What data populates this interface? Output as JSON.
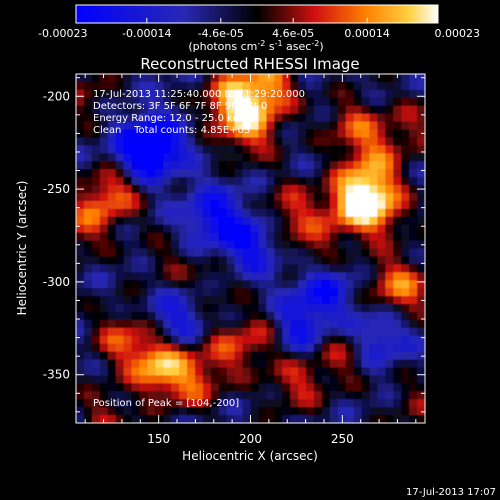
{
  "chart_data": {
    "type": "heatmap",
    "title": "Reconstructed RHESSI Image",
    "xlabel": "Heliocentric X (arcsec)",
    "ylabel": "Heliocentric Y (arcsec)",
    "xlim": [
      105,
      295
    ],
    "ylim": [
      -376,
      -188
    ],
    "x_ticks": [
      150,
      200,
      250
    ],
    "y_ticks": [
      -200,
      -250,
      -300,
      -350
    ],
    "colorbar": {
      "min": -0.00023,
      "max": 0.00023,
      "tick_values": [
        -0.00023,
        -0.00014,
        -4.6e-05,
        4.6e-05,
        0.00014,
        0.00023
      ],
      "tick_labels": [
        "-0.00023",
        "-0.00014",
        "-4.6e-05",
        "4.6e-05",
        "0.00014",
        "0.00023"
      ],
      "units": {
        "prefix": "(photons cm",
        "sup1": "-2",
        "mid1": " s",
        "sup2": "-1",
        "mid2": " asec",
        "sup3": "-2",
        "suffix": ")"
      }
    },
    "annotations": {
      "time_range": "17-Jul-2013 11:25:40.000 to 11:29:20.000",
      "detectors": "Detectors: 3F 5F 6F 7F 8F 9F, Att 0",
      "energy": "Energy Range: 12.0 - 25.0 keV",
      "clean": "Clean    Total counts: 4.85E+03",
      "peak": "Position of Peak = [104,-200]"
    },
    "features": [
      {
        "x": 125,
        "y": -252,
        "value": 0.00017
      },
      {
        "x": 108,
        "y": -270,
        "value": 0.00012
      },
      {
        "x": 190,
        "y": -203,
        "value": 0.00021
      },
      {
        "x": 200,
        "y": -218,
        "value": 0.00015
      },
      {
        "x": 210,
        "y": -195,
        "value": 0.00018
      },
      {
        "x": 255,
        "y": -215,
        "value": 0.00011
      },
      {
        "x": 268,
        "y": -228,
        "value": 0.0001
      },
      {
        "x": 222,
        "y": -262,
        "value": 0.00012
      },
      {
        "x": 235,
        "y": -282,
        "value": 9e-05
      },
      {
        "x": 255,
        "y": -258,
        "value": 0.00018
      },
      {
        "x": 265,
        "y": -248,
        "value": 0.00015
      },
      {
        "x": 270,
        "y": -262,
        "value": 0.00014
      },
      {
        "x": 285,
        "y": -305,
        "value": 0.00012
      },
      {
        "x": 275,
        "y": -300,
        "value": 8e-05
      },
      {
        "x": 150,
        "y": -345,
        "value": 0.00022
      },
      {
        "x": 130,
        "y": -330,
        "value": 0.00013
      },
      {
        "x": 168,
        "y": -355,
        "value": 0.00012
      },
      {
        "x": 185,
        "y": -338,
        "value": 0.0001
      },
      {
        "x": 205,
        "y": -330,
        "value": 0.00011
      },
      {
        "x": 225,
        "y": -355,
        "value": 0.00012
      },
      {
        "x": 250,
        "y": -340,
        "value": 0.0001
      },
      {
        "x": 120,
        "y": -372,
        "value": 9e-05
      },
      {
        "x": 290,
        "y": -365,
        "value": 7e-05
      },
      {
        "x": 290,
        "y": -215,
        "value": 8e-05
      },
      {
        "x": 155,
        "y": -290,
        "value": 6e-05
      },
      {
        "x": 180,
        "y": -300,
        "value": 6e-05
      },
      {
        "x": 110,
        "y": -200,
        "value": 8e-05
      },
      {
        "x": 140,
        "y": -230,
        "value": -0.00018
      },
      {
        "x": 180,
        "y": -265,
        "value": -0.00016
      },
      {
        "x": 200,
        "y": -280,
        "value": -0.00015
      },
      {
        "x": 240,
        "y": -305,
        "value": -0.00014
      },
      {
        "x": 225,
        "y": -325,
        "value": -0.00013
      },
      {
        "x": 160,
        "y": -320,
        "value": -0.00012
      },
      {
        "x": 150,
        "y": -225,
        "value": -0.00014
      },
      {
        "x": 270,
        "y": -330,
        "value": -0.00012
      }
    ]
  },
  "footer": {
    "timestamp": "17-Jul-2013 17:07"
  }
}
